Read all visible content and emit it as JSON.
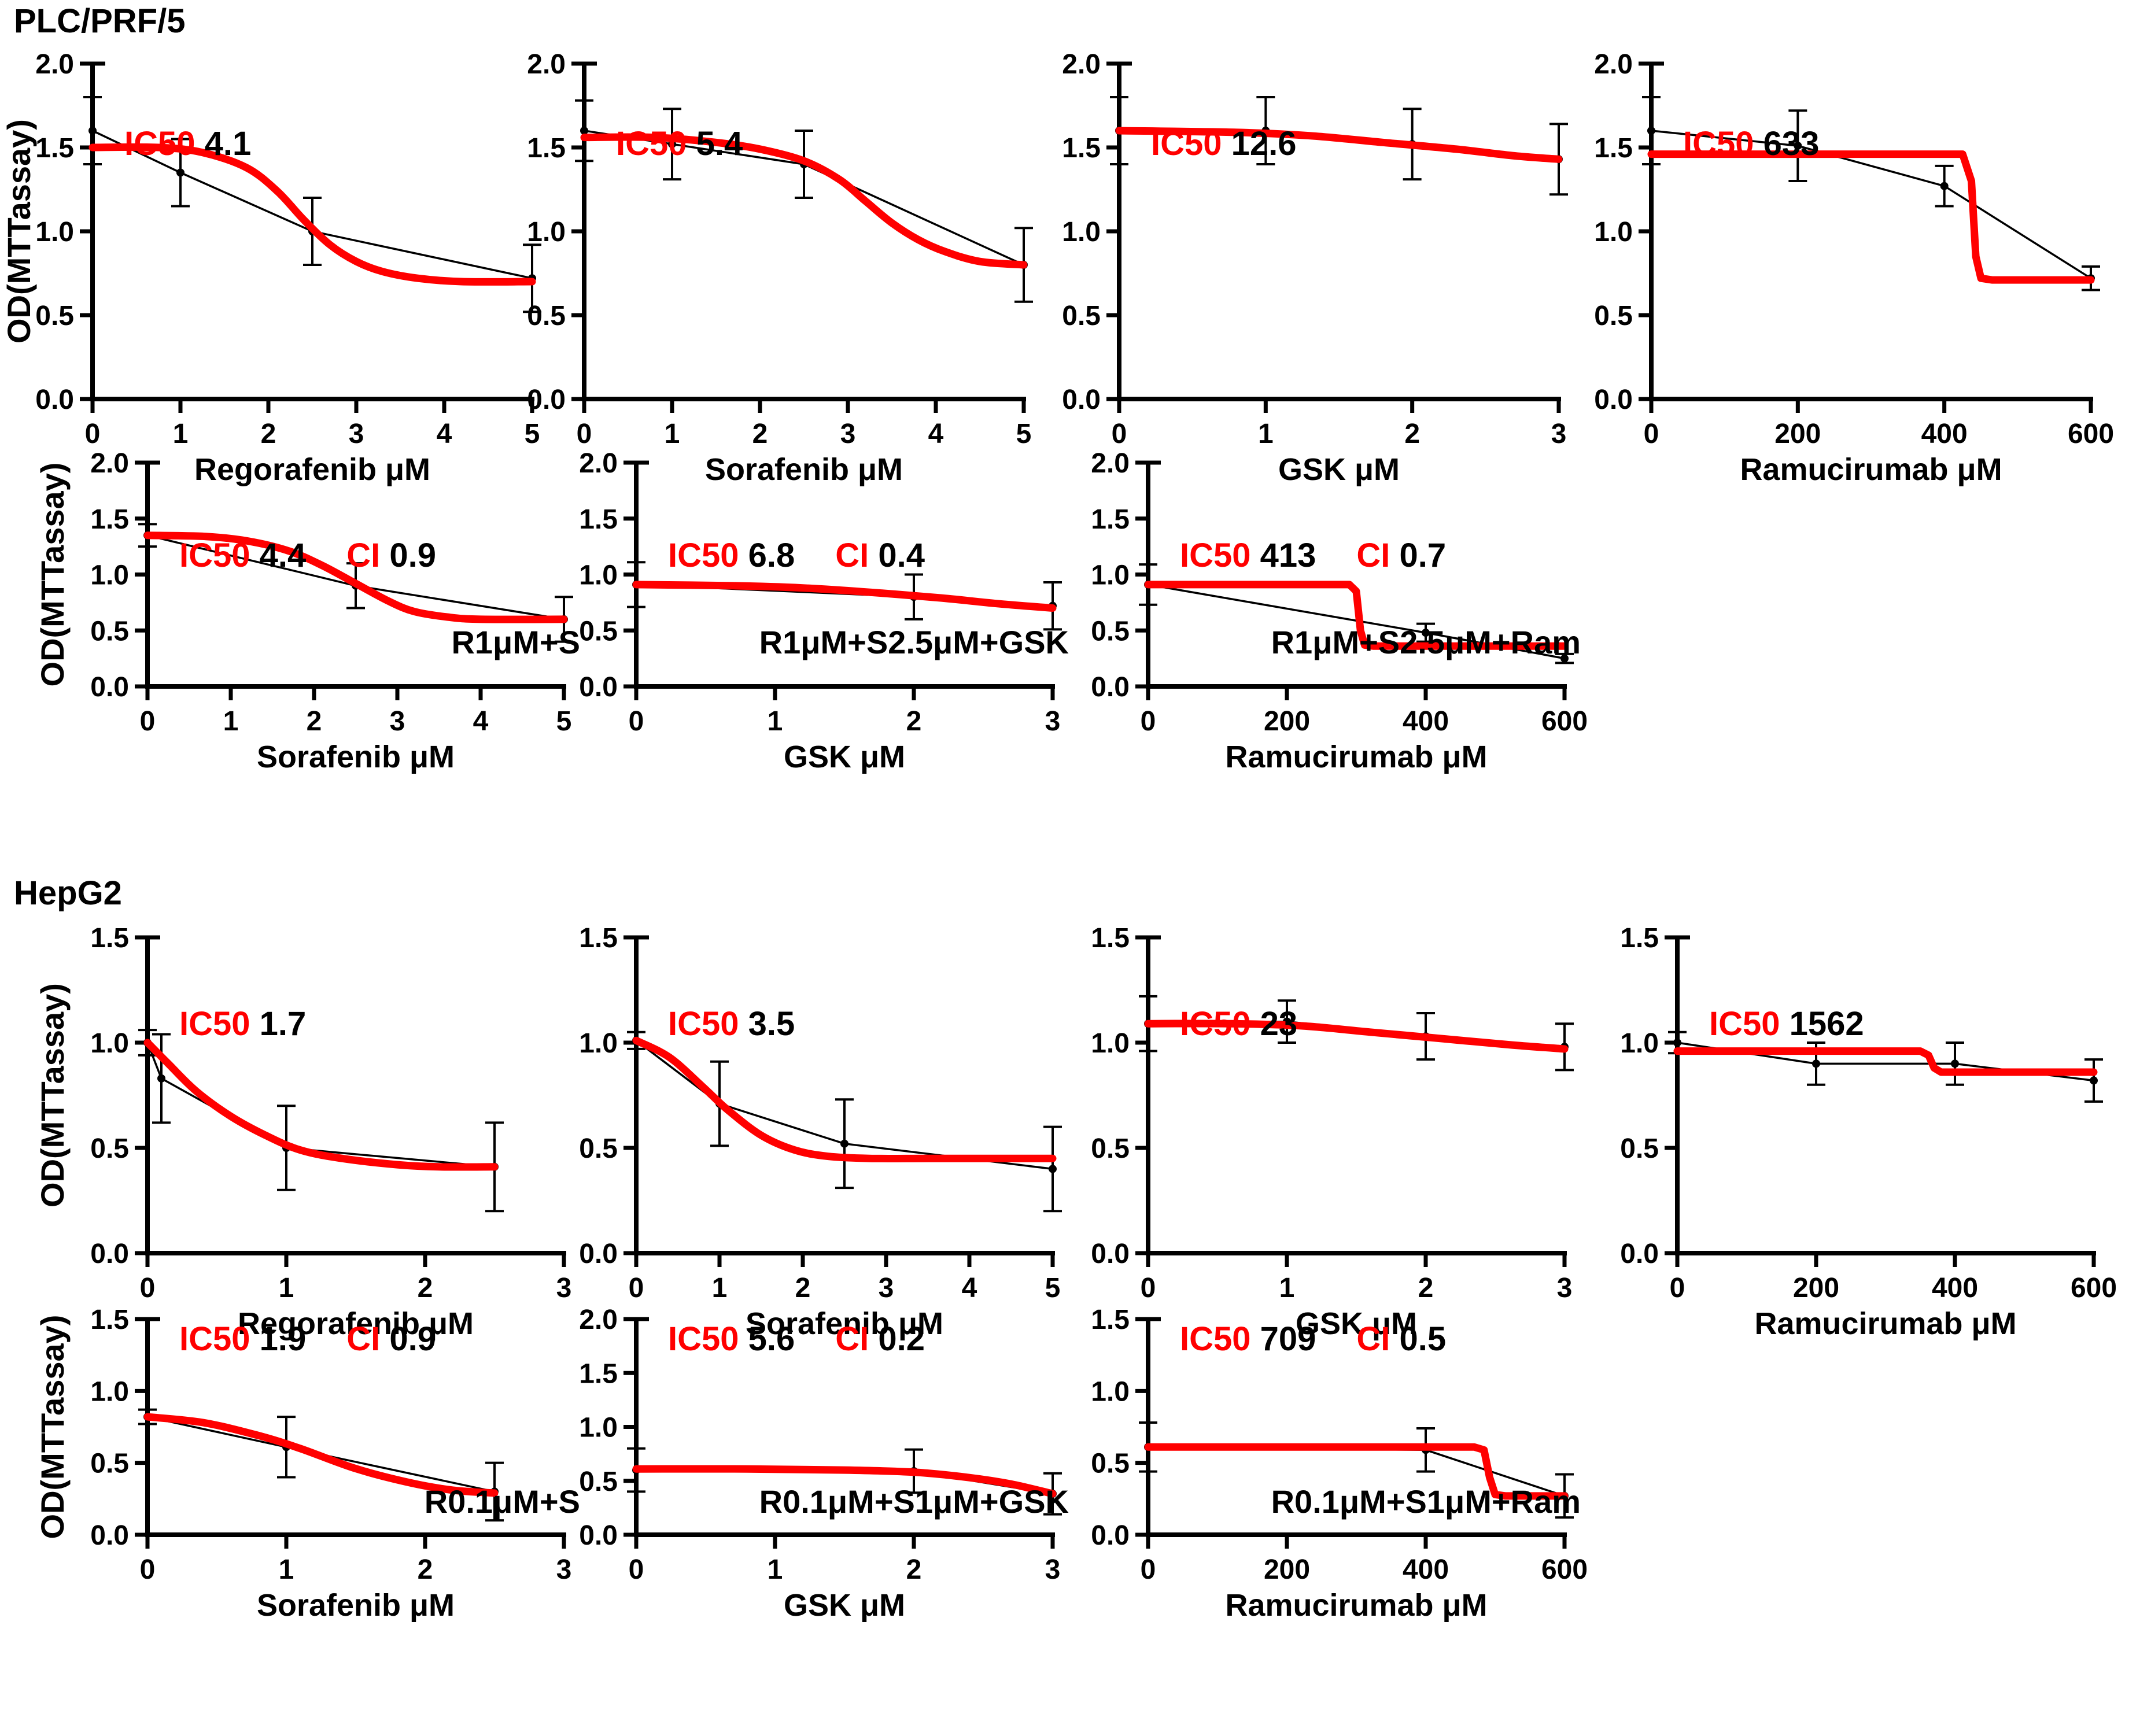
{
  "sections": [
    {
      "title": "PLC/PRF/5"
    },
    {
      "title": "HepG2"
    }
  ],
  "colors": {
    "fit_curve": "#ff0000",
    "data_series": "#000000",
    "ic50_label": "#ff0000",
    "value_text": "#000000",
    "background": "#ffffff"
  },
  "chart_data": {
    "type": "line",
    "ylabel": "OD(MTTassay)",
    "legend": "none",
    "grid": false,
    "description": "Dose-response MTT assay curves; black points with error bars connected by thin line, red fitted curve; IC50 (red label) and CI values per panel",
    "charts": [
      {
        "section": 0,
        "row": 0,
        "col": 0,
        "ic50": "4.1",
        "ci": null,
        "annotation": null,
        "xlabel": "Regorafenib μM",
        "xmax": 5,
        "xticks": [
          0,
          1,
          2,
          3,
          4,
          5
        ],
        "ylim": 2.0,
        "yticks": [
          "0.0",
          "0.5",
          "1.0",
          "1.5",
          "2.0"
        ],
        "points": [
          [
            0,
            1.6,
            0.2
          ],
          [
            1,
            1.35,
            0.2
          ],
          [
            2.5,
            1.0,
            0.2
          ],
          [
            5,
            0.72,
            0.2
          ]
        ],
        "fit_type": "sigmoid",
        "fit": [
          [
            0,
            1.5
          ],
          [
            0.75,
            1.5
          ],
          [
            1.25,
            1.47
          ],
          [
            1.75,
            1.38
          ],
          [
            2.1,
            1.24
          ],
          [
            2.4,
            1.07
          ],
          [
            2.7,
            0.92
          ],
          [
            3.0,
            0.82
          ],
          [
            3.3,
            0.76
          ],
          [
            3.7,
            0.72
          ],
          [
            4.2,
            0.7
          ],
          [
            5,
            0.7
          ]
        ]
      },
      {
        "section": 0,
        "row": 0,
        "col": 1,
        "ic50": "5.4",
        "ci": null,
        "annotation": null,
        "xlabel": "Sorafenib μM",
        "xmax": 5,
        "xticks": [
          0,
          1,
          2,
          3,
          4,
          5
        ],
        "ylim": 2.0,
        "yticks": [
          "0.0",
          "0.5",
          "1.0",
          "1.5",
          "2.0"
        ],
        "points": [
          [
            0,
            1.6,
            0.18
          ],
          [
            1,
            1.52,
            0.21
          ],
          [
            2.5,
            1.4,
            0.2
          ],
          [
            5,
            0.8,
            0.22
          ]
        ],
        "fit_type": "sigmoid",
        "fit": [
          [
            0,
            1.56
          ],
          [
            0.8,
            1.56
          ],
          [
            1.5,
            1.53
          ],
          [
            2.0,
            1.49
          ],
          [
            2.5,
            1.42
          ],
          [
            2.9,
            1.31
          ],
          [
            3.2,
            1.18
          ],
          [
            3.5,
            1.05
          ],
          [
            3.8,
            0.95
          ],
          [
            4.1,
            0.88
          ],
          [
            4.5,
            0.82
          ],
          [
            5,
            0.8
          ]
        ]
      },
      {
        "section": 0,
        "row": 0,
        "col": 2,
        "ic50": "12.6",
        "ci": null,
        "annotation": null,
        "xlabel": "GSK μM",
        "xmax": 3,
        "xticks": [
          0,
          1,
          2,
          3
        ],
        "ylim": 2.0,
        "yticks": [
          "0.0",
          "0.5",
          "1.0",
          "1.5",
          "2.0"
        ],
        "points": [
          [
            0,
            1.6,
            0.2
          ],
          [
            1,
            1.6,
            0.2
          ],
          [
            2,
            1.52,
            0.21
          ],
          [
            3,
            1.43,
            0.21
          ]
        ],
        "fit_type": "flat",
        "fit": [
          [
            0,
            1.6
          ],
          [
            0.8,
            1.59
          ],
          [
            1.3,
            1.57
          ],
          [
            1.8,
            1.53
          ],
          [
            2.3,
            1.49
          ],
          [
            2.7,
            1.45
          ],
          [
            3,
            1.43
          ]
        ]
      },
      {
        "section": 0,
        "row": 0,
        "col": 3,
        "ic50": "633",
        "ci": null,
        "annotation": null,
        "xlabel": "Ramucirumab μM",
        "xmax": 600,
        "xticks": [
          0,
          200,
          400,
          600
        ],
        "ylim": 2.0,
        "yticks": [
          "0.0",
          "0.5",
          "1.0",
          "1.5",
          "2.0"
        ],
        "points": [
          [
            0,
            1.6,
            0.2
          ],
          [
            200,
            1.51,
            0.21
          ],
          [
            400,
            1.27,
            0.12
          ],
          [
            600,
            0.72,
            0.07
          ]
        ],
        "fit_type": "step",
        "fit": [
          [
            0,
            1.46
          ],
          [
            425,
            1.46
          ],
          [
            437,
            1.3
          ],
          [
            443,
            0.85
          ],
          [
            450,
            0.72
          ],
          [
            465,
            0.71
          ],
          [
            600,
            0.71
          ]
        ]
      },
      {
        "section": 0,
        "row": 1,
        "col": 0,
        "ic50": "4.4",
        "ci": "0.9",
        "annotation": "R1μM+S",
        "xlabel": "Sorafenib μM",
        "xmax": 5,
        "xticks": [
          0,
          1,
          2,
          3,
          4,
          5
        ],
        "ylim": 2.0,
        "yticks": [
          "0.0",
          "0.5",
          "1.0",
          "1.5",
          "2.0"
        ],
        "points": [
          [
            0,
            1.35,
            0.1
          ],
          [
            2.5,
            0.9,
            0.2
          ],
          [
            5,
            0.6,
            0.2
          ]
        ],
        "fit_type": "sigmoid",
        "fit": [
          [
            0,
            1.35
          ],
          [
            0.7,
            1.34
          ],
          [
            1.2,
            1.3
          ],
          [
            1.7,
            1.21
          ],
          [
            2.1,
            1.08
          ],
          [
            2.5,
            0.92
          ],
          [
            2.9,
            0.76
          ],
          [
            3.2,
            0.67
          ],
          [
            3.6,
            0.62
          ],
          [
            4.0,
            0.6
          ],
          [
            5,
            0.6
          ]
        ]
      },
      {
        "section": 0,
        "row": 1,
        "col": 1,
        "ic50": "6.8",
        "ci": "0.4",
        "annotation": "R1μM+S2.5μM+GSK",
        "xlabel": "GSK μM",
        "xmax": 3,
        "xticks": [
          0,
          1,
          2,
          3
        ],
        "ylim": 2.0,
        "yticks": [
          "0.0",
          "0.5",
          "1.0",
          "1.5",
          "2.0"
        ],
        "points": [
          [
            0,
            0.91,
            0.2
          ],
          [
            2,
            0.8,
            0.2
          ],
          [
            3,
            0.72,
            0.21
          ]
        ],
        "fit_type": "flat",
        "fit": [
          [
            0,
            0.91
          ],
          [
            0.7,
            0.9
          ],
          [
            1.2,
            0.88
          ],
          [
            1.7,
            0.84
          ],
          [
            2.2,
            0.79
          ],
          [
            2.6,
            0.74
          ],
          [
            3,
            0.7
          ]
        ]
      },
      {
        "section": 0,
        "row": 1,
        "col": 2,
        "ic50": "413",
        "ci": "0.7",
        "annotation": "R1μM+S2.5μM+Ram",
        "xlabel": "Ramucirumab μM",
        "xmax": 600,
        "xticks": [
          0,
          200,
          400,
          600
        ],
        "ylim": 2.0,
        "yticks": [
          "0.0",
          "0.5",
          "1.0",
          "1.5",
          "2.0"
        ],
        "points": [
          [
            0,
            0.91,
            0.18
          ],
          [
            400,
            0.48,
            0.08
          ],
          [
            600,
            0.25,
            0.04
          ]
        ],
        "fit_type": "step",
        "fit": [
          [
            0,
            0.91
          ],
          [
            290,
            0.91
          ],
          [
            300,
            0.85
          ],
          [
            306,
            0.5
          ],
          [
            312,
            0.37
          ],
          [
            325,
            0.36
          ],
          [
            600,
            0.36
          ]
        ]
      },
      {
        "section": 1,
        "row": 2,
        "col": 0,
        "ic50": "1.7",
        "ci": null,
        "annotation": null,
        "xlabel": "Regorafenib μM",
        "xmax": 3,
        "xticks": [
          0,
          1,
          2,
          3
        ],
        "ylim": 1.5,
        "yticks": [
          "0.0",
          "0.5",
          "1.0",
          "1.5"
        ],
        "points": [
          [
            0,
            1.0,
            0.06
          ],
          [
            0.1,
            0.83,
            0.21
          ],
          [
            1,
            0.5,
            0.2
          ],
          [
            2.5,
            0.41,
            0.21
          ]
        ],
        "fit_type": "decay",
        "fit": [
          [
            0,
            1.0
          ],
          [
            0.15,
            0.9
          ],
          [
            0.35,
            0.77
          ],
          [
            0.6,
            0.65
          ],
          [
            0.85,
            0.56
          ],
          [
            1.1,
            0.49
          ],
          [
            1.4,
            0.45
          ],
          [
            1.8,
            0.42
          ],
          [
            2.1,
            0.41
          ],
          [
            2.5,
            0.41
          ]
        ]
      },
      {
        "section": 1,
        "row": 2,
        "col": 1,
        "ic50": "3.5",
        "ci": null,
        "annotation": null,
        "xlabel": "Sorafenib μM",
        "xmax": 5,
        "xticks": [
          0,
          1,
          2,
          3,
          4,
          5
        ],
        "ylim": 1.5,
        "yticks": [
          "0.0",
          "0.5",
          "1.0",
          "1.5"
        ],
        "points": [
          [
            0,
            1.01,
            0.04
          ],
          [
            1,
            0.71,
            0.2
          ],
          [
            2.5,
            0.52,
            0.21
          ],
          [
            5,
            0.4,
            0.2
          ]
        ],
        "fit_type": "decay",
        "fit": [
          [
            0,
            1.01
          ],
          [
            0.4,
            0.93
          ],
          [
            0.8,
            0.79
          ],
          [
            1.1,
            0.68
          ],
          [
            1.5,
            0.56
          ],
          [
            1.9,
            0.49
          ],
          [
            2.3,
            0.46
          ],
          [
            2.8,
            0.45
          ],
          [
            3.5,
            0.45
          ],
          [
            4.3,
            0.45
          ],
          [
            5,
            0.45
          ]
        ]
      },
      {
        "section": 1,
        "row": 2,
        "col": 2,
        "ic50": "23",
        "ci": null,
        "annotation": null,
        "xlabel": "GSK μM",
        "xmax": 3,
        "xticks": [
          0,
          1,
          2,
          3
        ],
        "ylim": 1.5,
        "yticks": [
          "0.0",
          "0.5",
          "1.0",
          "1.5"
        ],
        "points": [
          [
            0,
            1.09,
            0.13
          ],
          [
            1,
            1.1,
            0.1
          ],
          [
            2,
            1.03,
            0.11
          ],
          [
            3,
            0.98,
            0.11
          ]
        ],
        "fit_type": "flat",
        "fit": [
          [
            0,
            1.09
          ],
          [
            0.6,
            1.09
          ],
          [
            1.1,
            1.08
          ],
          [
            1.6,
            1.05
          ],
          [
            2.1,
            1.02
          ],
          [
            2.6,
            0.99
          ],
          [
            3,
            0.97
          ]
        ]
      },
      {
        "section": 1,
        "row": 2,
        "col": 3,
        "ic50": "1562",
        "ci": null,
        "annotation": null,
        "xlabel": "Ramucirumab μM",
        "xmax": 600,
        "xticks": [
          0,
          200,
          400,
          600
        ],
        "ylim": 1.5,
        "yticks": [
          "0.0",
          "0.5",
          "1.0",
          "1.5"
        ],
        "points": [
          [
            0,
            1.0,
            0.05
          ],
          [
            200,
            0.9,
            0.1
          ],
          [
            400,
            0.9,
            0.1
          ],
          [
            600,
            0.82,
            0.1
          ]
        ],
        "fit_type": "step",
        "fit": [
          [
            0,
            0.96
          ],
          [
            350,
            0.96
          ],
          [
            362,
            0.94
          ],
          [
            370,
            0.88
          ],
          [
            380,
            0.86
          ],
          [
            600,
            0.86
          ]
        ]
      },
      {
        "section": 1,
        "row": 3,
        "col": 0,
        "ic50": "1.9",
        "ci": "0.9",
        "annotation": "R0.1μM+S",
        "xlabel": "Sorafenib μM",
        "xmax": 3,
        "xticks": [
          0,
          1,
          2,
          3
        ],
        "ylim": 1.5,
        "yticks": [
          "0.0",
          "0.5",
          "1.0",
          "1.5"
        ],
        "points": [
          [
            0,
            0.82,
            0.05
          ],
          [
            1,
            0.61,
            0.21
          ],
          [
            2.5,
            0.3,
            0.2
          ]
        ],
        "fit_type": "sigmoid",
        "fit": [
          [
            0,
            0.82
          ],
          [
            0.4,
            0.78
          ],
          [
            0.8,
            0.69
          ],
          [
            1.1,
            0.6
          ],
          [
            1.5,
            0.46
          ],
          [
            1.9,
            0.36
          ],
          [
            2.2,
            0.31
          ],
          [
            2.5,
            0.29
          ]
        ]
      },
      {
        "section": 1,
        "row": 3,
        "col": 1,
        "ic50": "5.6",
        "ci": "0.2",
        "annotation": "R0.1μM+S1μM+GSK",
        "xlabel": "GSK μM",
        "xmax": 3,
        "xticks": [
          0,
          1,
          2,
          3
        ],
        "ylim": 2.0,
        "yticks": [
          "0.0",
          "0.5",
          "1.0",
          "1.5",
          "2.0"
        ],
        "points": [
          [
            0,
            0.6,
            0.2
          ],
          [
            2,
            0.59,
            0.2
          ],
          [
            3,
            0.38,
            0.19
          ]
        ],
        "fit_type": "flat",
        "fit": [
          [
            0,
            0.61
          ],
          [
            0.8,
            0.61
          ],
          [
            1.5,
            0.6
          ],
          [
            2.0,
            0.58
          ],
          [
            2.4,
            0.53
          ],
          [
            2.7,
            0.47
          ],
          [
            3,
            0.38
          ]
        ]
      },
      {
        "section": 1,
        "row": 3,
        "col": 2,
        "ic50": "709",
        "ci": "0.5",
        "annotation": "R0.1μM+S1μM+Ram",
        "xlabel": "Ramucirumab μM",
        "xmax": 600,
        "xticks": [
          0,
          200,
          400,
          600
        ],
        "ylim": 1.5,
        "yticks": [
          "0.0",
          "0.5",
          "1.0",
          "1.5"
        ],
        "points": [
          [
            0,
            0.61,
            0.17
          ],
          [
            400,
            0.59,
            0.15
          ],
          [
            600,
            0.27,
            0.15
          ]
        ],
        "fit_type": "step",
        "fit": [
          [
            0,
            0.61
          ],
          [
            470,
            0.61
          ],
          [
            484,
            0.59
          ],
          [
            492,
            0.4
          ],
          [
            500,
            0.28
          ],
          [
            515,
            0.27
          ],
          [
            600,
            0.27
          ]
        ]
      }
    ]
  }
}
